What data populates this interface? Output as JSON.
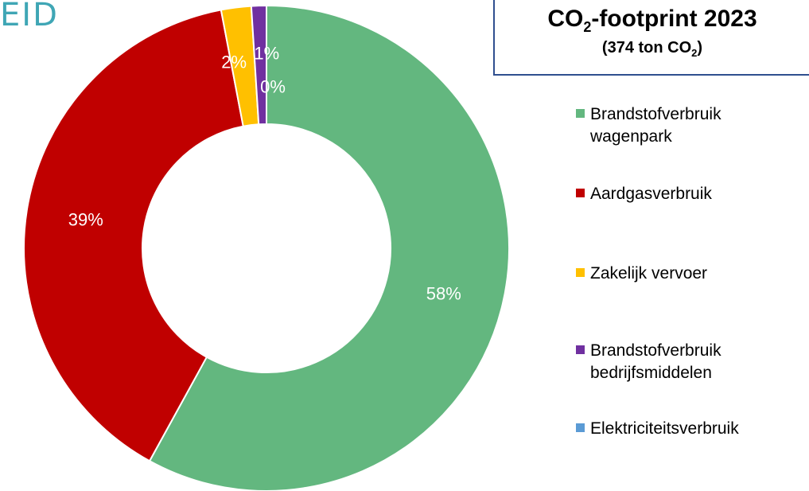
{
  "logo": {
    "text": "EID"
  },
  "title": {
    "line1_prefix": "CO",
    "line1_sub": "2",
    "line1_suffix": "-footprint 2023",
    "line2_prefix": "(374 ton CO",
    "line2_sub": "2",
    "line2_suffix": ")"
  },
  "chart_data": {
    "type": "pie",
    "variant": "donut",
    "title": "CO2-footprint 2023",
    "subtitle": "(374 ton CO2)",
    "legend_position": "right",
    "slices": [
      {
        "label": "Brandstofverbruik wagenpark",
        "value": 58,
        "display": "58%",
        "color": "#63b77f",
        "label_color": "#ffffff"
      },
      {
        "label": "Aardgasverbruik",
        "value": 39,
        "display": "39%",
        "color": "#c00000",
        "label_color": "#ffffff"
      },
      {
        "label": "Zakelijk vervoer",
        "value": 2,
        "display": "2%",
        "color": "#ffc000",
        "label_color": "#ffffff"
      },
      {
        "label": "Brandstofverbruik bedrijfsmiddelen",
        "value": 1,
        "display": "1%",
        "color": "#7030a0",
        "label_color": "#ffffff"
      },
      {
        "label": "Elektriciteitsverbruik",
        "value": 0,
        "display": "0%",
        "color": "#5b9bd5",
        "label_color": "#ffffff"
      }
    ]
  },
  "legend": {
    "items": [
      {
        "lines": [
          "Brandstofverbruik",
          "wagenpark"
        ],
        "color": "#63b77f"
      },
      {
        "lines": [
          "Aardgasverbruik"
        ],
        "color": "#c00000"
      },
      {
        "lines": [
          "Zakelijk vervoer"
        ],
        "color": "#ffc000"
      },
      {
        "lines": [
          "Brandstofverbruik",
          "bedrijfsmiddelen"
        ],
        "color": "#7030a0"
      },
      {
        "lines": [
          "Elektriciteitsverbruik"
        ],
        "color": "#5b9bd5"
      }
    ]
  }
}
